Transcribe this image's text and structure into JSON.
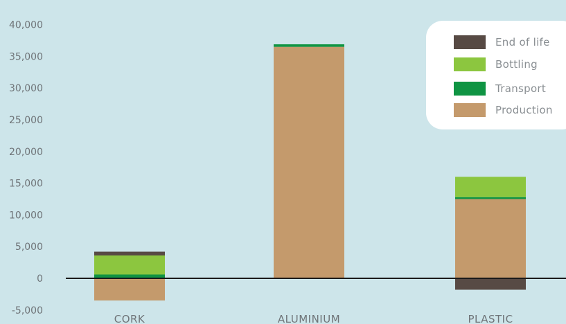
{
  "chart_data": {
    "type": "bar",
    "stacked": true,
    "categories": [
      "CORK",
      "ALUMINIUM",
      "PLASTIC"
    ],
    "series": [
      {
        "name": "Production",
        "color": "#c49a6c",
        "values": [
          -3500,
          36500,
          12500
        ]
      },
      {
        "name": "Transport",
        "color": "#0f9443",
        "values": [
          600,
          400,
          300
        ]
      },
      {
        "name": "Bottling",
        "color": "#8cc63f",
        "values": [
          3000,
          0,
          3200
        ]
      },
      {
        "name": "End of life",
        "color": "#574a44",
        "values": [
          600,
          0,
          -1800
        ]
      }
    ],
    "legend": [
      "End of life",
      "Bottling",
      "Transport",
      "Production"
    ],
    "yticks": [
      "40,000",
      "35,000",
      "30,000",
      "25,000",
      "20,000",
      "15,000",
      "10,000",
      "5,000",
      "0",
      "-5,000"
    ],
    "ylim": [
      -5000,
      40000
    ],
    "legend_position": "top-right",
    "grid": false
  }
}
